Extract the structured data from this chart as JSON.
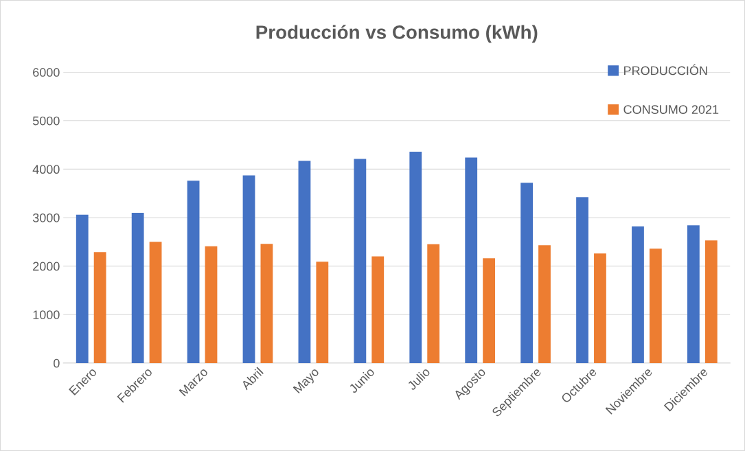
{
  "chart_data": {
    "type": "bar",
    "title": "Producción vs Consumo (kWh)",
    "categories": [
      "Enero",
      "Febrero",
      "Marzo",
      "Abril",
      "Mayo",
      "Junio",
      "Julio",
      "Agosto",
      "Septiembre",
      "Octubre",
      "Noviembre",
      "Diciembre"
    ],
    "series": [
      {
        "name": "PRODUCCIÓN",
        "color": "#4472c4",
        "values": [
          3060,
          3100,
          3760,
          3870,
          4170,
          4210,
          4360,
          4240,
          3720,
          3420,
          2820,
          2840
        ]
      },
      {
        "name": "CONSUMO 2021",
        "color": "#ed7d31",
        "values": [
          2290,
          2500,
          2410,
          2460,
          2090,
          2200,
          2450,
          2160,
          2430,
          2260,
          2360,
          2530
        ]
      }
    ],
    "ylim": [
      0,
      6000
    ],
    "yticks": [
      0,
      1000,
      2000,
      3000,
      4000,
      5000,
      6000
    ],
    "grid": "y",
    "legend": "top right"
  }
}
